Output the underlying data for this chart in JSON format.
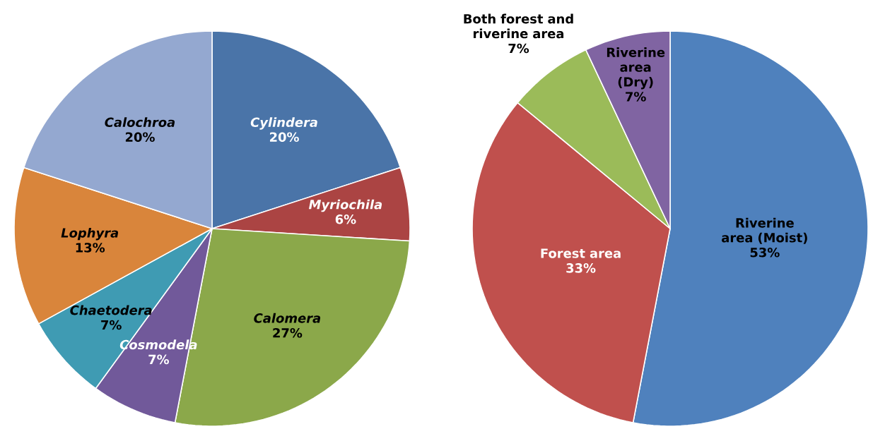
{
  "chart_data": [
    {
      "type": "pie",
      "categories": [
        "Cylindera",
        "Myriochila",
        "Calomera",
        "Cosmodela",
        "Chaetodera",
        "Lophyra",
        "Calochroa"
      ],
      "values": [
        20,
        6,
        27,
        7,
        7,
        13,
        20
      ],
      "value_labels": [
        "20%",
        "6%",
        "27%",
        "7%",
        "7%",
        "13%",
        "20%"
      ],
      "colors": [
        "#4a74a8",
        "#ab4443",
        "#8ba84a",
        "#71599a",
        "#3f9bb3",
        "#d9853b",
        "#94a8d0"
      ]
    },
    {
      "type": "pie",
      "categories": [
        "Riverine area (Moist)",
        "Forest area",
        "Both forest and riverine area",
        "Riverine area (Dry)"
      ],
      "values": [
        53,
        33,
        7,
        7
      ],
      "value_labels": [
        "53%",
        "33%",
        "7%",
        "7%"
      ],
      "colors": [
        "#4f81bd",
        "#c0504d",
        "#9bbb59",
        "#8064a2"
      ]
    }
  ]
}
